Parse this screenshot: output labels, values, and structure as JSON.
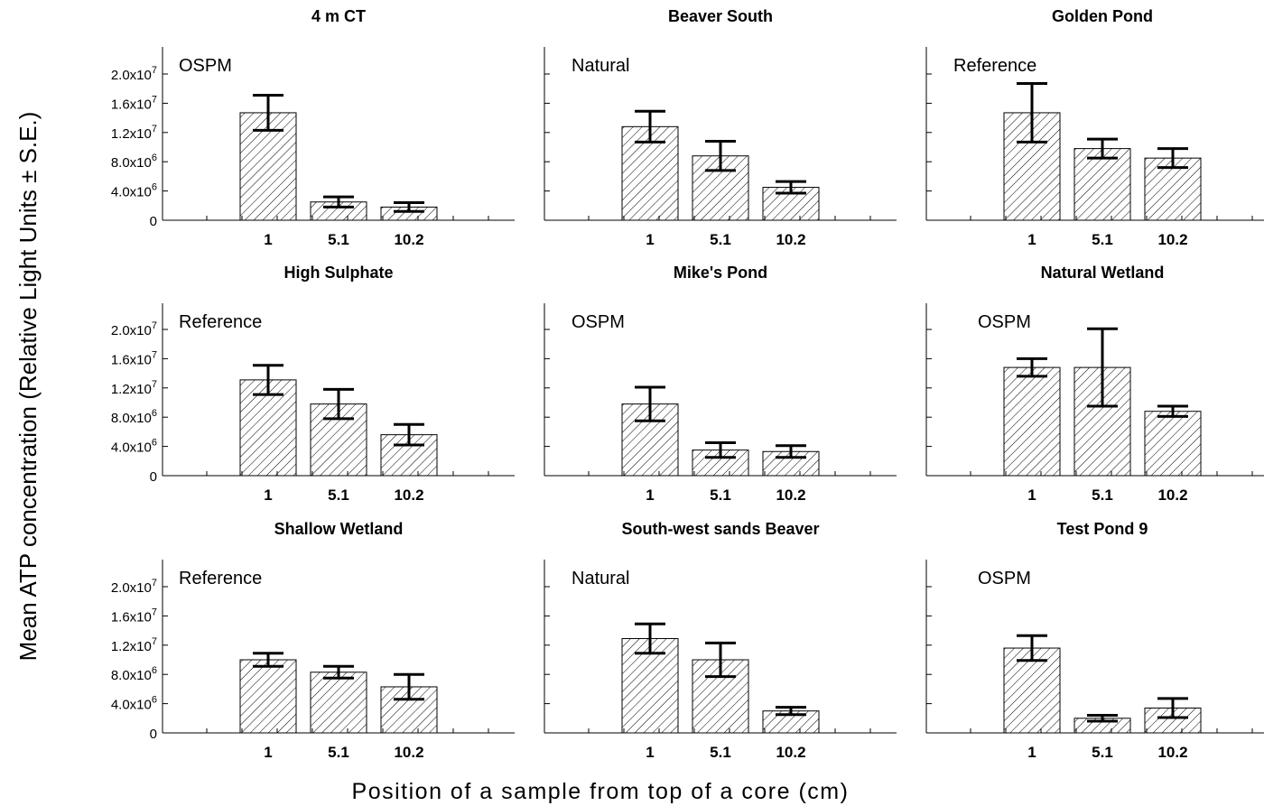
{
  "chart_data": {
    "type": "bar",
    "xlabel": "Position of a sample from top of a core (cm)",
    "ylabel": "Mean ATP concentration (Relative Light Units ± S.E.)",
    "ylim": [
      0,
      23000000
    ],
    "categories": [
      "1",
      "5.1",
      "10.2"
    ],
    "y_ticks": [
      {
        "value": 0,
        "base": "0",
        "exp": ""
      },
      {
        "value": 4000000,
        "base": "4.0x10",
        "exp": "6"
      },
      {
        "value": 8000000,
        "base": "8.0x10",
        "exp": "6"
      },
      {
        "value": 12000000,
        "base": "1.2x10",
        "exp": "7"
      },
      {
        "value": 16000000,
        "base": "1.6x10",
        "exp": "7"
      },
      {
        "value": 20000000,
        "base": "2.0x10",
        "exp": "7"
      }
    ],
    "panels": [
      {
        "title": "4 m CT",
        "label": "OSPM",
        "values": [
          14700000,
          2500000,
          1800000
        ],
        "errors": [
          2400000,
          700000,
          600000
        ]
      },
      {
        "title": "Beaver South",
        "label": "Natural",
        "values": [
          12800000,
          8800000,
          4500000
        ],
        "errors": [
          2100000,
          2000000,
          800000
        ]
      },
      {
        "title": "Golden Pond",
        "label": "Reference",
        "values": [
          14700000,
          9800000,
          8500000
        ],
        "errors": [
          4000000,
          1300000,
          1300000
        ]
      },
      {
        "title": "High Sulphate",
        "label": "Reference",
        "values": [
          13100000,
          9800000,
          5600000
        ],
        "errors": [
          2000000,
          2000000,
          1400000
        ]
      },
      {
        "title": "Mike's Pond",
        "label": "OSPM",
        "values": [
          9800000,
          3500000,
          3300000
        ],
        "errors": [
          2300000,
          1000000,
          800000
        ]
      },
      {
        "title": "Natural Wetland",
        "label": "OSPM",
        "values": [
          14800000,
          14800000,
          8800000
        ],
        "errors": [
          1200000,
          5300000,
          700000
        ]
      },
      {
        "title": "Shallow Wetland",
        "label": "Reference",
        "values": [
          10000000,
          8300000,
          6300000
        ],
        "errors": [
          900000,
          800000,
          1700000
        ]
      },
      {
        "title": "South-west sands Beaver",
        "label": "Natural",
        "values": [
          12900000,
          10000000,
          3000000
        ],
        "errors": [
          2000000,
          2300000,
          500000
        ]
      },
      {
        "title": "Test Pond 9",
        "label": "OSPM",
        "values": [
          11600000,
          2000000,
          3400000
        ],
        "errors": [
          1700000,
          400000,
          1300000
        ]
      }
    ]
  }
}
